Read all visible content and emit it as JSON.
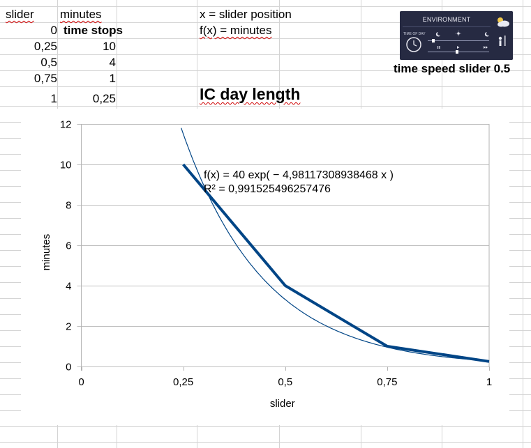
{
  "sheet": {
    "header_slider": "slider",
    "header_minutes": "minutes",
    "rows": [
      {
        "slider": "0",
        "minutes": "time stops"
      },
      {
        "slider": "0,25",
        "minutes": "10"
      },
      {
        "slider": "0,5",
        "minutes": "4"
      },
      {
        "slider": "0,75",
        "minutes": "1"
      },
      {
        "slider": "1",
        "minutes": "0,25"
      }
    ],
    "note_x": "x = slider position",
    "note_fx": "f(x) = minutes",
    "heading": "IC day length"
  },
  "env_widget": {
    "title": "ENVIRONMENT",
    "label": "TIME OF DAY",
    "caption": "time speed slider 0.5",
    "icons": [
      "clock-icon",
      "moon-icon",
      "sun-icon",
      "pause-icon",
      "play-icon",
      "fast-forward-icon",
      "weather-icon",
      "thermometer-icon"
    ]
  },
  "chart_data": {
    "type": "line",
    "xlabel": "slider",
    "ylabel": "minutes",
    "xlim": [
      0,
      1
    ],
    "ylim": [
      0,
      12
    ],
    "x_ticks": [
      "0",
      "0,25",
      "0,5",
      "0,75",
      "1"
    ],
    "y_ticks": [
      "0",
      "2",
      "4",
      "6",
      "8",
      "10",
      "12"
    ],
    "grid": true,
    "series": [
      {
        "x": [
          0.25,
          0.5,
          0.75,
          1
        ],
        "y": [
          10,
          4,
          1,
          0.25
        ],
        "color": "#004586"
      }
    ],
    "trendline": {
      "equation": "f(x) = 40 exp( − 4,98117308938468 x )",
      "r_squared": "R² = 0,991525496257476",
      "a": 40,
      "b": -4.98117308938468,
      "color": "#004586"
    }
  },
  "colors": {
    "gridline": "#c0c0c0",
    "series": "#004586",
    "spell": "#d00000",
    "panel": "#262a42"
  }
}
